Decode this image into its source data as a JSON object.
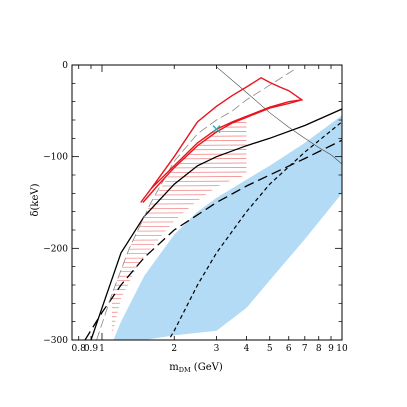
{
  "chart_data": {
    "type": "line",
    "xlabel": "m",
    "xlabel_sub": "DM",
    "xlabel_unit": " (GeV)",
    "ylabel": "δ(keV)",
    "xscale": "log",
    "xlim": [
      0.75,
      10
    ],
    "ylim": [
      -300,
      0
    ],
    "grid": false,
    "legend": "none",
    "x_ticks": [
      {
        "value": 0.8,
        "label": "0.8"
      },
      {
        "value": 0.9,
        "label": "0.9"
      },
      {
        "value": 1,
        "label": "1"
      },
      {
        "value": 2,
        "label": "2"
      },
      {
        "value": 3,
        "label": "3"
      },
      {
        "value": 4,
        "label": "4"
      },
      {
        "value": 5,
        "label": "5"
      },
      {
        "value": 6,
        "label": "6"
      },
      {
        "value": 7,
        "label": "7"
      },
      {
        "value": 8,
        "label": "8"
      },
      {
        "value": 9,
        "label": "9"
      },
      {
        "value": 10,
        "label": "10"
      }
    ],
    "y_ticks": [
      {
        "value": 0,
        "label": "0"
      },
      {
        "value": -100,
        "label": "−100"
      },
      {
        "value": -200,
        "label": "−200"
      },
      {
        "value": -300,
        "label": "−300"
      }
    ],
    "colors": {
      "band": "#b3dbf5",
      "contour": "#e8141e",
      "hatch": "#f07a7a",
      "marker": "#22b5b5",
      "line": "#000000",
      "gray": "#888888"
    },
    "band": {
      "upper": [
        [
          1.0,
          -330
        ],
        [
          1.2,
          -280
        ],
        [
          1.5,
          -230
        ],
        [
          2.0,
          -185
        ],
        [
          2.5,
          -160
        ],
        [
          3.0,
          -145
        ],
        [
          4.0,
          -125
        ],
        [
          5.0,
          -110
        ],
        [
          7.0,
          -85
        ],
        [
          10.0,
          -55
        ]
      ],
      "lower": [
        [
          1.25,
          -310
        ],
        [
          1.5,
          -300
        ],
        [
          2.0,
          -295
        ],
        [
          3.0,
          -290
        ],
        [
          4.0,
          -265
        ],
        [
          5.0,
          -235
        ],
        [
          7.0,
          -190
        ],
        [
          10.0,
          -140
        ]
      ]
    },
    "series": [
      {
        "style": "solid",
        "points": [
          [
            0.9,
            -300
          ],
          [
            1.0,
            -265
          ],
          [
            1.2,
            -205
          ],
          [
            1.5,
            -165
          ],
          [
            2.0,
            -130
          ],
          [
            2.5,
            -110
          ],
          [
            3.0,
            -100
          ],
          [
            4.0,
            -88
          ],
          [
            5.0,
            -80
          ],
          [
            7.0,
            -66
          ],
          [
            10.0,
            -48
          ]
        ]
      },
      {
        "style": "dash-long",
        "points": [
          [
            0.85,
            -300
          ],
          [
            1.0,
            -270
          ],
          [
            1.2,
            -240
          ],
          [
            1.5,
            -210
          ],
          [
            2.0,
            -180
          ],
          [
            3.0,
            -150
          ],
          [
            4.0,
            -132
          ],
          [
            5.0,
            -120
          ],
          [
            7.0,
            -102
          ],
          [
            10.0,
            -82
          ]
        ]
      },
      {
        "style": "dash-short",
        "points": [
          [
            1.8,
            -310
          ],
          [
            2.0,
            -290
          ],
          [
            2.5,
            -240
          ],
          [
            3.0,
            -205
          ],
          [
            4.0,
            -160
          ],
          [
            5.0,
            -130
          ],
          [
            7.0,
            -95
          ],
          [
            10.0,
            -62
          ]
        ]
      },
      {
        "style": "thin",
        "points": [
          [
            3.0,
            -2
          ],
          [
            4.0,
            -30
          ],
          [
            5.0,
            -52
          ],
          [
            6.0,
            -68
          ],
          [
            7.0,
            -80
          ],
          [
            8.0,
            -90
          ],
          [
            9.0,
            -98
          ],
          [
            10.0,
            -108
          ]
        ]
      },
      {
        "style": "gray-dash",
        "points": [
          [
            0.95,
            -300
          ],
          [
            1.1,
            -250
          ],
          [
            1.3,
            -200
          ],
          [
            1.6,
            -150
          ],
          [
            2.0,
            -105
          ],
          [
            2.5,
            -75
          ],
          [
            3.0,
            -60
          ],
          [
            3.5,
            -50
          ],
          [
            4.0,
            -38
          ],
          [
            5.0,
            -22
          ],
          [
            6.5,
            -3
          ]
        ]
      }
    ],
    "contour_outer": [
      [
        1.45,
        -150
      ],
      [
        1.6,
        -135
      ],
      [
        2.0,
        -100
      ],
      [
        2.5,
        -62
      ],
      [
        3.0,
        -45
      ],
      [
        3.5,
        -33
      ],
      [
        4.0,
        -24
      ],
      [
        4.6,
        -14
      ],
      [
        5.0,
        -19
      ],
      [
        5.5,
        -24
      ],
      [
        6.0,
        -28
      ],
      [
        6.8,
        -38
      ],
      [
        6.0,
        -40
      ],
      [
        5.0,
        -46
      ],
      [
        4.0,
        -56
      ],
      [
        3.5,
        -62
      ],
      [
        3.0,
        -70
      ],
      [
        2.5,
        -85
      ],
      [
        2.0,
        -110
      ],
      [
        1.6,
        -135
      ],
      [
        1.45,
        -150
      ]
    ],
    "contour_inner": [
      [
        1.48,
        -150
      ],
      [
        1.7,
        -132
      ],
      [
        2.0,
        -112
      ],
      [
        2.5,
        -88
      ],
      [
        3.0,
        -73
      ],
      [
        3.5,
        -63
      ],
      [
        4.0,
        -57
      ],
      [
        5.0,
        -47
      ],
      [
        6.0,
        -42
      ],
      [
        6.8,
        -38
      ]
    ],
    "hatched_region": {
      "upper": [
        [
          1.1,
          -250
        ],
        [
          1.3,
          -200
        ],
        [
          1.6,
          -150
        ],
        [
          2.0,
          -112
        ],
        [
          2.5,
          -88
        ],
        [
          3.0,
          -73
        ],
        [
          3.5,
          -63
        ],
        [
          4.0,
          -57
        ]
      ],
      "lower": [
        [
          1.1,
          -295
        ],
        [
          1.2,
          -255
        ],
        [
          1.4,
          -220
        ],
        [
          1.6,
          -200
        ],
        [
          2.0,
          -170
        ],
        [
          2.5,
          -148
        ],
        [
          3.0,
          -133
        ],
        [
          3.5,
          -125
        ],
        [
          4.0,
          -120
        ]
      ]
    },
    "best_fit": {
      "x": 3.0,
      "y": -70,
      "marker": "x"
    }
  }
}
